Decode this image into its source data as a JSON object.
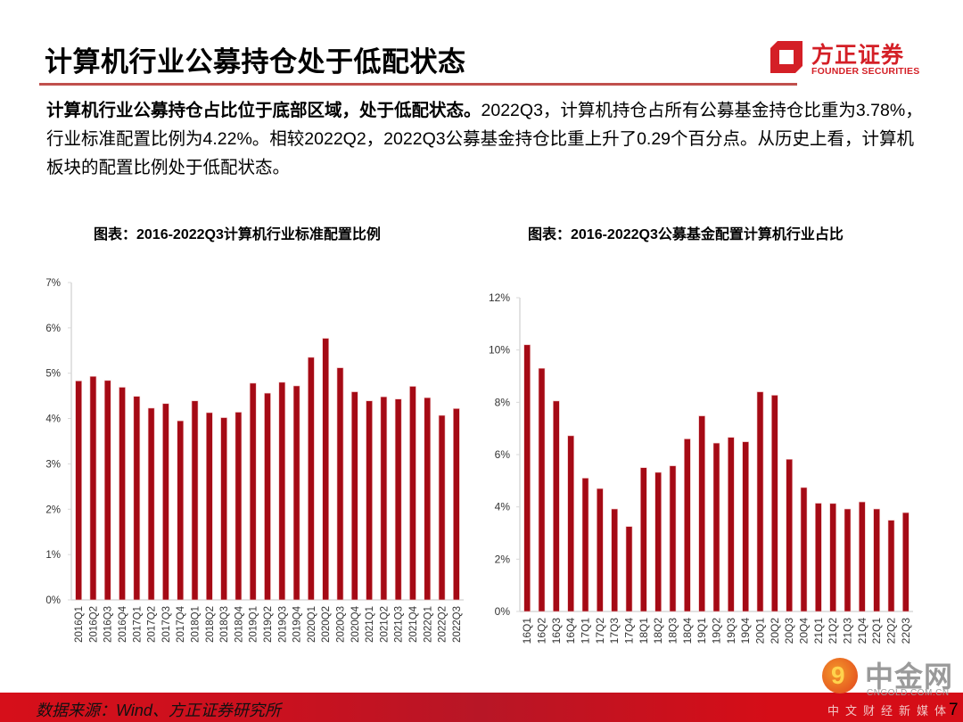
{
  "header": {
    "title": "计算机行业公募持仓处于低配状态",
    "logo_cn": "方正证券",
    "logo_en": "FOUNDER SECURITIES"
  },
  "summary": {
    "bold": "计算机行业公募持仓占比位于底部区域，处于低配状态。",
    "text": "2022Q3，计算机持仓占所有公募基金持仓比重为3.78%，行业标准配置比例为4.22%。相较2022Q2，2022Q3公募基金持仓比重上升了0.29个百分点。从历史上看，计算机板块的配置比例处于低配状态。"
  },
  "chart_data": [
    {
      "type": "bar",
      "title": "图表：2016-2022Q3计算机行业标准配置比例",
      "xlabel": "",
      "ylabel": "",
      "ylim": [
        0,
        7
      ],
      "yticks": [
        0,
        1,
        2,
        3,
        4,
        5,
        6,
        7
      ],
      "ytick_labels": [
        "0%",
        "1%",
        "2%",
        "3%",
        "4%",
        "5%",
        "6%",
        "7%"
      ],
      "grid": false,
      "bar_color": "#a50a15",
      "categories": [
        "2016Q1",
        "2016Q2",
        "2016Q3",
        "2016Q4",
        "2017Q1",
        "2017Q2",
        "2017Q3",
        "2017Q4",
        "2018Q1",
        "2018Q2",
        "2018Q3",
        "2018Q4",
        "2019Q1",
        "2019Q2",
        "2019Q3",
        "2019Q4",
        "2020Q1",
        "2020Q2",
        "2020Q3",
        "2020Q4",
        "2021Q1",
        "2021Q2",
        "2021Q3",
        "2021Q4",
        "2022Q1",
        "2022Q2",
        "2022Q3"
      ],
      "values": [
        4.83,
        4.93,
        4.84,
        4.69,
        4.49,
        4.23,
        4.33,
        3.95,
        4.39,
        4.13,
        4.02,
        4.14,
        4.78,
        4.56,
        4.8,
        4.72,
        5.35,
        5.77,
        5.12,
        4.59,
        4.39,
        4.48,
        4.43,
        4.71,
        4.46,
        4.07,
        4.22
      ]
    },
    {
      "type": "bar",
      "title": "图表：2016-2022Q3公募基金配置计算机行业占比",
      "xlabel": "",
      "ylabel": "",
      "ylim": [
        0,
        12
      ],
      "yticks": [
        0,
        2,
        4,
        6,
        8,
        10,
        12
      ],
      "ytick_labels": [
        "0%",
        "2%",
        "4%",
        "6%",
        "8%",
        "10%",
        "12%"
      ],
      "grid": false,
      "bar_color": "#a50a15",
      "categories": [
        "16Q1",
        "16Q2",
        "16Q3",
        "16Q4",
        "17Q1",
        "17Q2",
        "17Q3",
        "17Q4",
        "18Q1",
        "18Q2",
        "18Q3",
        "18Q4",
        "19Q1",
        "19Q2",
        "19Q3",
        "19Q4",
        "20Q1",
        "20Q2",
        "20Q3",
        "20Q4",
        "21Q1",
        "21Q2",
        "21Q3",
        "21Q4",
        "22Q1",
        "22Q2",
        "22Q3"
      ],
      "values": [
        10.2,
        9.3,
        8.05,
        6.72,
        5.1,
        4.7,
        3.92,
        3.25,
        5.5,
        5.32,
        5.57,
        6.6,
        7.48,
        6.44,
        6.66,
        6.49,
        8.4,
        8.27,
        5.82,
        4.74,
        4.14,
        4.13,
        3.92,
        4.19,
        3.92,
        3.49,
        3.78
      ]
    }
  ],
  "footer": {
    "source": "数据来源：Wind、方正证券研究所",
    "page_number": "7",
    "watermark_cn": "中金网",
    "watermark_en": "CNGOLD.COM.CN",
    "watermark_sub": "中文财经新媒体"
  }
}
